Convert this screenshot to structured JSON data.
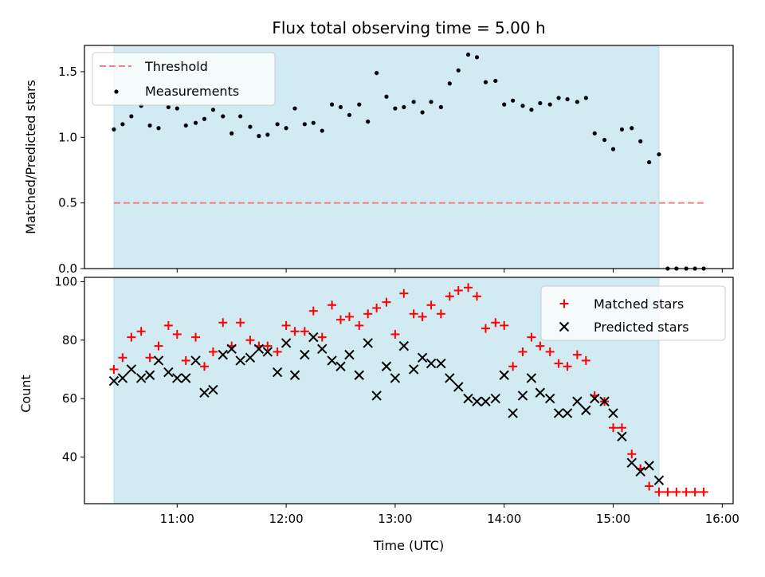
{
  "chart_data": [
    {
      "type": "scatter",
      "title": "Flux total observing time = 5.00 h",
      "xlabel": "",
      "ylabel": "Matched/Predicted stars",
      "ylim": [
        0,
        1.7
      ],
      "yticks": [
        "0.0",
        "0.5",
        "1.0",
        "1.5"
      ],
      "xlim": [
        10.15,
        16.1
      ],
      "shaded_span": [
        10.42,
        15.42
      ],
      "shade_color": "#add8e6",
      "legend": {
        "placement": "top-left"
      },
      "threshold": {
        "name": "Threshold",
        "value": 0.5,
        "x": [
          10.42,
          15.83
        ],
        "color": "#f08080"
      },
      "series": [
        {
          "name": "Measurements",
          "color": "#000000",
          "marker": "dot",
          "points": [
            [
              10.42,
              1.06
            ],
            [
              10.5,
              1.1
            ],
            [
              10.58,
              1.16
            ],
            [
              10.67,
              1.24
            ],
            [
              10.75,
              1.09
            ],
            [
              10.83,
              1.07
            ],
            [
              10.92,
              1.23
            ],
            [
              11.0,
              1.22
            ],
            [
              11.08,
              1.09
            ],
            [
              11.17,
              1.11
            ],
            [
              11.25,
              1.14
            ],
            [
              11.33,
              1.21
            ],
            [
              11.42,
              1.16
            ],
            [
              11.5,
              1.03
            ],
            [
              11.58,
              1.16
            ],
            [
              11.67,
              1.08
            ],
            [
              11.75,
              1.01
            ],
            [
              11.83,
              1.02
            ],
            [
              11.92,
              1.1
            ],
            [
              12.0,
              1.07
            ],
            [
              12.08,
              1.22
            ],
            [
              12.17,
              1.1
            ],
            [
              12.25,
              1.11
            ],
            [
              12.33,
              1.05
            ],
            [
              12.42,
              1.25
            ],
            [
              12.5,
              1.23
            ],
            [
              12.58,
              1.17
            ],
            [
              12.67,
              1.25
            ],
            [
              12.75,
              1.12
            ],
            [
              12.83,
              1.49
            ],
            [
              12.92,
              1.31
            ],
            [
              13.0,
              1.22
            ],
            [
              13.08,
              1.23
            ],
            [
              13.17,
              1.27
            ],
            [
              13.25,
              1.19
            ],
            [
              13.33,
              1.27
            ],
            [
              13.42,
              1.23
            ],
            [
              13.5,
              1.41
            ],
            [
              13.58,
              1.51
            ],
            [
              13.67,
              1.63
            ],
            [
              13.75,
              1.61
            ],
            [
              13.83,
              1.42
            ],
            [
              13.92,
              1.43
            ],
            [
              14.0,
              1.25
            ],
            [
              14.08,
              1.28
            ],
            [
              14.17,
              1.24
            ],
            [
              14.25,
              1.21
            ],
            [
              14.33,
              1.26
            ],
            [
              14.42,
              1.25
            ],
            [
              14.5,
              1.3
            ],
            [
              14.58,
              1.29
            ],
            [
              14.67,
              1.27
            ],
            [
              14.75,
              1.3
            ],
            [
              14.83,
              1.03
            ],
            [
              14.92,
              0.98
            ],
            [
              15.0,
              0.91
            ],
            [
              15.08,
              1.06
            ],
            [
              15.17,
              1.07
            ],
            [
              15.25,
              0.97
            ],
            [
              15.33,
              0.81
            ],
            [
              15.42,
              0.87
            ],
            [
              15.5,
              0.0
            ],
            [
              15.58,
              0.0
            ],
            [
              15.67,
              0.0
            ],
            [
              15.75,
              0.0
            ],
            [
              15.83,
              0.0
            ]
          ]
        }
      ]
    },
    {
      "type": "scatter",
      "title": "",
      "xlabel": "Time (UTC)",
      "ylabel": "Count",
      "ylim": [
        24,
        101.5
      ],
      "yticks": [
        "40",
        "60",
        "80",
        "100"
      ],
      "xlim": [
        10.15,
        16.1
      ],
      "xticks": [
        "11:00",
        "12:00",
        "13:00",
        "14:00",
        "15:00",
        "16:00"
      ],
      "shaded_span": [
        10.42,
        15.42
      ],
      "legend": {
        "placement": "top-right"
      },
      "series": [
        {
          "name": "Matched stars",
          "color": "#ff0000",
          "marker": "plus",
          "points": [
            [
              10.42,
              70
            ],
            [
              10.5,
              74
            ],
            [
              10.58,
              81
            ],
            [
              10.67,
              83
            ],
            [
              10.75,
              74
            ],
            [
              10.83,
              78
            ],
            [
              10.92,
              85
            ],
            [
              11.0,
              82
            ],
            [
              11.08,
              73
            ],
            [
              11.17,
              81
            ],
            [
              11.25,
              71
            ],
            [
              11.33,
              76
            ],
            [
              11.42,
              86
            ],
            [
              11.5,
              78
            ],
            [
              11.58,
              86
            ],
            [
              11.67,
              80
            ],
            [
              11.75,
              78
            ],
            [
              11.83,
              78
            ],
            [
              11.92,
              76
            ],
            [
              12.0,
              85
            ],
            [
              12.08,
              83
            ],
            [
              12.17,
              83
            ],
            [
              12.25,
              90
            ],
            [
              12.33,
              81
            ],
            [
              12.42,
              92
            ],
            [
              12.5,
              87
            ],
            [
              12.58,
              88
            ],
            [
              12.67,
              85
            ],
            [
              12.75,
              89
            ],
            [
              12.83,
              91
            ],
            [
              12.92,
              93
            ],
            [
              13.0,
              82
            ],
            [
              13.08,
              96
            ],
            [
              13.17,
              89
            ],
            [
              13.25,
              88
            ],
            [
              13.33,
              92
            ],
            [
              13.42,
              89
            ],
            [
              13.5,
              95
            ],
            [
              13.58,
              97
            ],
            [
              13.67,
              98
            ],
            [
              13.75,
              95
            ],
            [
              13.83,
              84
            ],
            [
              13.92,
              86
            ],
            [
              14.0,
              85
            ],
            [
              14.08,
              71
            ],
            [
              14.17,
              76
            ],
            [
              14.25,
              81
            ],
            [
              14.33,
              78
            ],
            [
              14.42,
              76
            ],
            [
              14.5,
              72
            ],
            [
              14.58,
              71
            ],
            [
              14.67,
              75
            ],
            [
              14.75,
              73
            ],
            [
              14.83,
              61
            ],
            [
              14.92,
              59
            ],
            [
              15.0,
              50
            ],
            [
              15.08,
              50
            ],
            [
              15.17,
              41
            ],
            [
              15.25,
              36
            ],
            [
              15.33,
              30
            ],
            [
              15.42,
              28
            ],
            [
              15.5,
              28
            ],
            [
              15.58,
              28
            ],
            [
              15.67,
              28
            ],
            [
              15.75,
              28
            ],
            [
              15.83,
              28
            ]
          ]
        },
        {
          "name": "Predicted stars",
          "color": "#000000",
          "marker": "x",
          "points": [
            [
              10.42,
              66
            ],
            [
              10.5,
              67
            ],
            [
              10.58,
              70
            ],
            [
              10.67,
              67
            ],
            [
              10.75,
              68
            ],
            [
              10.83,
              73
            ],
            [
              10.92,
              69
            ],
            [
              11.0,
              67
            ],
            [
              11.08,
              67
            ],
            [
              11.17,
              73
            ],
            [
              11.25,
              62
            ],
            [
              11.33,
              63
            ],
            [
              11.42,
              75
            ],
            [
              11.5,
              77
            ],
            [
              11.58,
              73
            ],
            [
              11.67,
              74
            ],
            [
              11.75,
              77
            ],
            [
              11.83,
              76
            ],
            [
              11.92,
              69
            ],
            [
              12.0,
              79
            ],
            [
              12.08,
              68
            ],
            [
              12.17,
              75
            ],
            [
              12.25,
              81
            ],
            [
              12.33,
              77
            ],
            [
              12.42,
              73
            ],
            [
              12.5,
              71
            ],
            [
              12.58,
              75
            ],
            [
              12.67,
              68
            ],
            [
              12.75,
              79
            ],
            [
              12.83,
              61
            ],
            [
              12.92,
              71
            ],
            [
              13.0,
              67
            ],
            [
              13.08,
              78
            ],
            [
              13.17,
              70
            ],
            [
              13.25,
              74
            ],
            [
              13.33,
              72
            ],
            [
              13.42,
              72
            ],
            [
              13.5,
              67
            ],
            [
              13.58,
              64
            ],
            [
              13.67,
              60
            ],
            [
              13.75,
              59
            ],
            [
              13.83,
              59
            ],
            [
              13.92,
              60
            ],
            [
              14.0,
              68
            ],
            [
              14.08,
              55
            ],
            [
              14.17,
              61
            ],
            [
              14.25,
              67
            ],
            [
              14.33,
              62
            ],
            [
              14.42,
              60
            ],
            [
              14.5,
              55
            ],
            [
              14.58,
              55
            ],
            [
              14.67,
              59
            ],
            [
              14.75,
              56
            ],
            [
              14.83,
              60
            ],
            [
              14.92,
              59
            ],
            [
              15.0,
              55
            ],
            [
              15.08,
              47
            ],
            [
              15.17,
              38
            ],
            [
              15.25,
              35
            ],
            [
              15.33,
              37
            ],
            [
              15.42,
              32
            ]
          ]
        }
      ]
    }
  ]
}
